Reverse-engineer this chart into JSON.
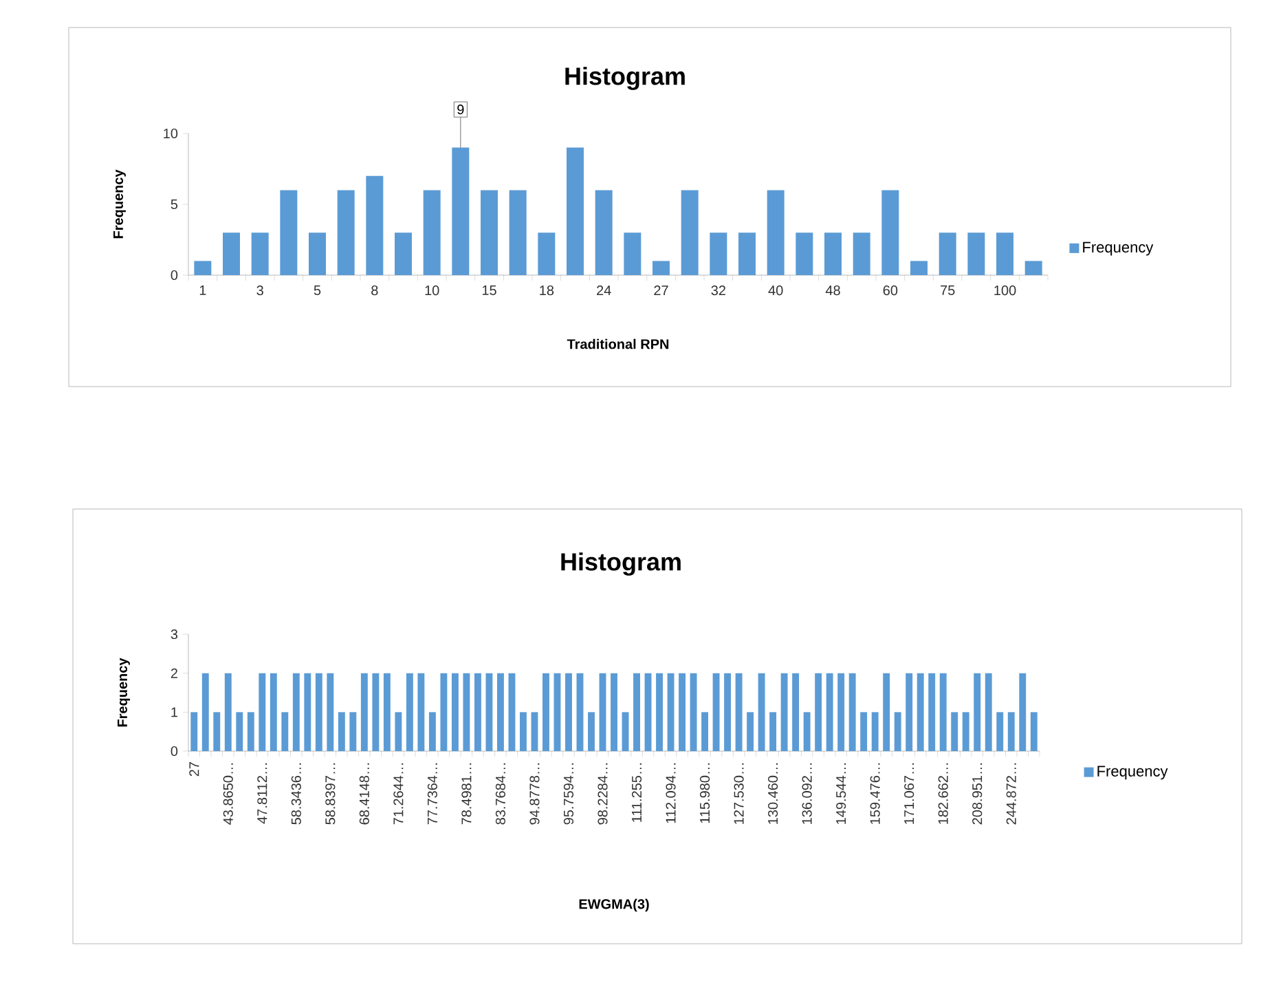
{
  "chart_data": [
    {
      "type": "bar",
      "title": "Histogram",
      "xlabel": "Traditional RPN",
      "ylabel": "Frequency",
      "categories": [
        "1",
        null,
        "3",
        null,
        "5",
        null,
        "8",
        null,
        "10",
        null,
        "15",
        null,
        "18",
        null,
        "24",
        null,
        "27",
        null,
        "32",
        null,
        "40",
        null,
        "48",
        null,
        "60",
        null,
        "75",
        null,
        "100",
        null
      ],
      "series": [
        {
          "name": "Frequency",
          "color": "#5b9bd5",
          "values": [
            1,
            3,
            3,
            6,
            3,
            6,
            7,
            3,
            6,
            9,
            6,
            6,
            3,
            9,
            6,
            3,
            1,
            6,
            3,
            3,
            6,
            3,
            3,
            3,
            6,
            1,
            3,
            3,
            3,
            1
          ],
          "value_labels": [
            null,
            null,
            null,
            null,
            null,
            null,
            null,
            null,
            null,
            "9",
            null,
            null,
            null,
            null,
            null,
            null,
            null,
            null,
            null,
            null,
            null,
            null,
            null,
            null,
            null,
            null,
            null,
            null,
            null,
            null
          ]
        }
      ],
      "ylim": [
        0,
        10
      ],
      "yticks": [
        0,
        5,
        10
      ],
      "legend": "right"
    },
    {
      "type": "bar",
      "title": "Histogram",
      "xlabel": "EWGMA(3)",
      "ylabel": "Frequency",
      "categories": [
        "27",
        null,
        null,
        "43.8650…",
        null,
        null,
        "47.8112…",
        null,
        null,
        "58.3436…",
        null,
        null,
        "58.8397…",
        null,
        null,
        "68.4148…",
        null,
        null,
        "71.2644…",
        null,
        null,
        "77.7364…",
        null,
        null,
        "78.4981…",
        null,
        null,
        "83.7684…",
        null,
        null,
        "94.8778…",
        null,
        null,
        "95.7594…",
        null,
        null,
        "98.2284…",
        null,
        null,
        "111.255…",
        null,
        null,
        "112.094…",
        null,
        null,
        "115.980…",
        null,
        null,
        "127.530…",
        null,
        null,
        "130.460…",
        null,
        null,
        "136.092…",
        null,
        null,
        "149.544…",
        null,
        null,
        "159.476…",
        null,
        null,
        "171.067…",
        null,
        null,
        "182.662…",
        null,
        null,
        "208.951…",
        null,
        null,
        "244.872…",
        null,
        null
      ],
      "series": [
        {
          "name": "Frequency",
          "color": "#5b9bd5",
          "values": [
            1,
            2,
            1,
            2,
            1,
            1,
            2,
            2,
            1,
            2,
            2,
            2,
            2,
            1,
            1,
            2,
            2,
            2,
            1,
            2,
            2,
            1,
            2,
            2,
            2,
            2,
            2,
            2,
            2,
            1,
            1,
            2,
            2,
            2,
            2,
            1,
            2,
            2,
            1,
            2,
            2,
            2,
            2,
            2,
            2,
            1,
            2,
            2,
            2,
            1,
            2,
            1,
            2,
            2,
            1,
            2,
            2,
            2,
            2,
            1,
            1,
            2,
            1,
            2,
            2,
            2,
            2,
            1,
            1,
            2,
            2,
            1,
            1,
            2,
            1
          ]
        }
      ],
      "ylim": [
        0,
        3
      ],
      "yticks": [
        0,
        1,
        2,
        3
      ],
      "legend": "right"
    }
  ]
}
